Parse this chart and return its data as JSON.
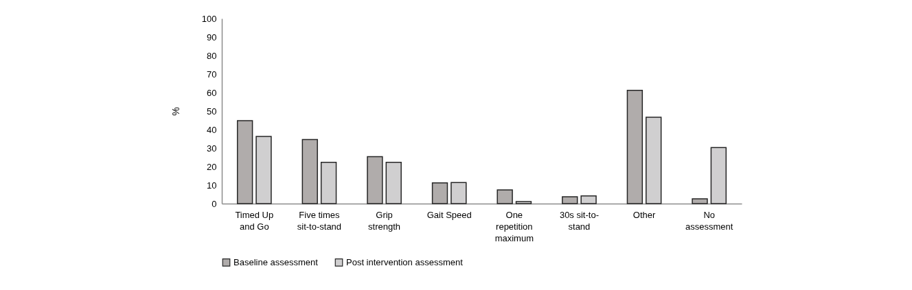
{
  "chart_data": {
    "type": "bar",
    "ylabel": "%",
    "categories": [
      "Timed Up and Go",
      "Five times sit-to-stand",
      "Grip strength",
      "Gait Speed",
      "One repetition maximum",
      "30s sit-to-stand",
      "Other",
      "No assessment"
    ],
    "series": [
      {
        "name": "Baseline assessment",
        "color": "#b0acab",
        "values": [
          44.8,
          34.6,
          25.4,
          11.2,
          7.4,
          3.7,
          61.2,
          2.6
        ]
      },
      {
        "name": "Post intervention assessment",
        "color": "#d0cfd0",
        "values": [
          36.3,
          22.3,
          22.3,
          11.4,
          1.1,
          4.2,
          46.7,
          30.3
        ]
      }
    ],
    "ylim": [
      0,
      100
    ],
    "yticks": [
      0,
      10,
      20,
      30,
      40,
      50,
      60,
      70,
      80,
      90,
      100
    ],
    "grid": false,
    "legend": "bottom"
  }
}
